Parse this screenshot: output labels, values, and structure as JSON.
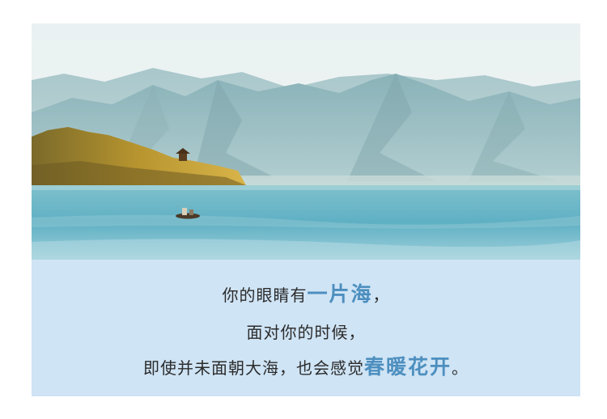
{
  "image": {
    "subject": "lake-mountain-landscape"
  },
  "caption": {
    "line1": {
      "pre": "你的眼睛有",
      "highlight": "一片海",
      "post": "，"
    },
    "line2": {
      "text": "面对你的时候，"
    },
    "line3": {
      "pre": "即使并未面朝大海，也会感觉",
      "highlight": "春暖花开",
      "post": "。"
    }
  },
  "colors": {
    "caption_bg": "#cfe4f5",
    "highlight": "#4d8fbf",
    "text": "#2b2b2b"
  }
}
